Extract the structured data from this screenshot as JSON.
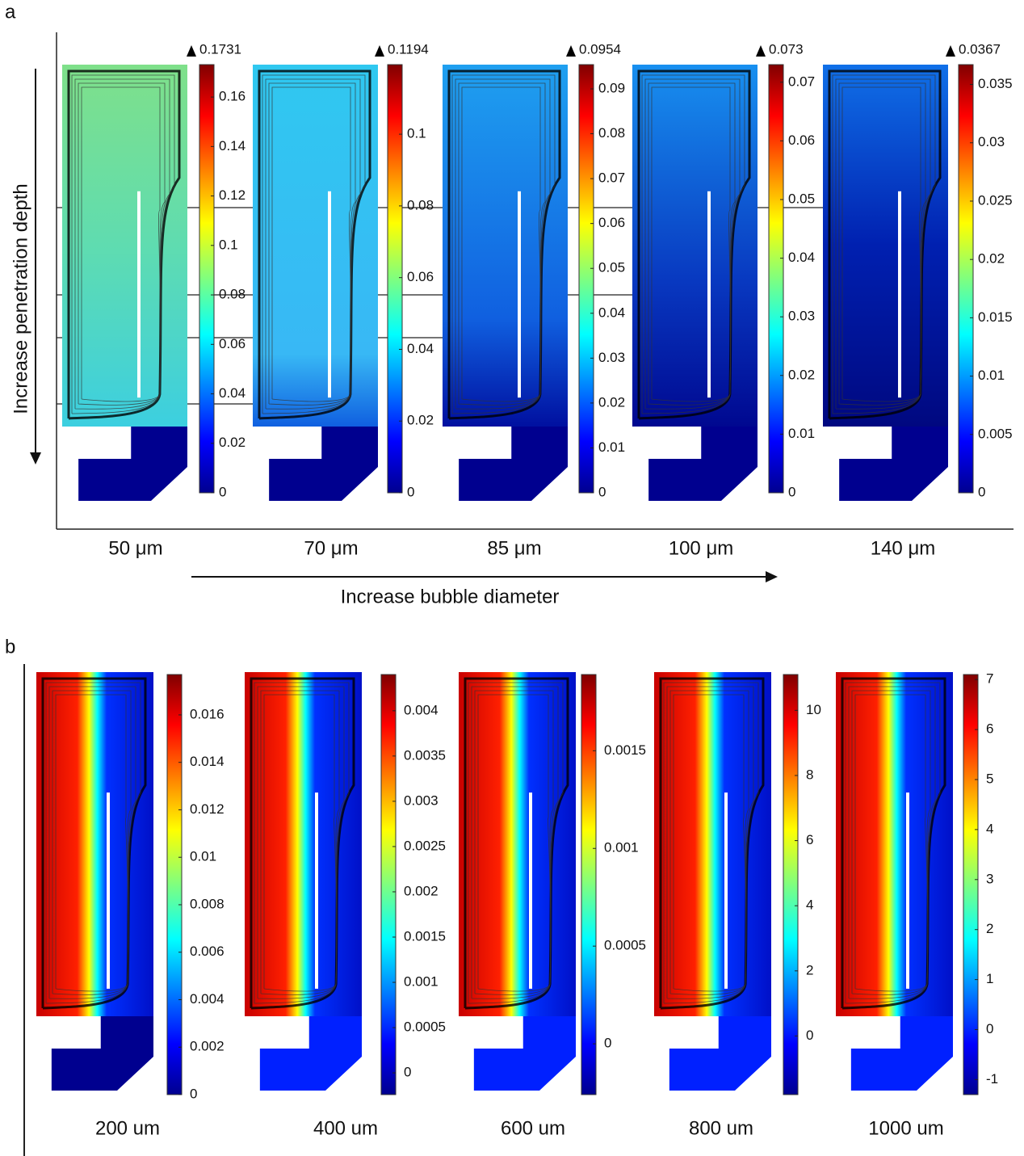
{
  "panel_a": {
    "label": "a",
    "y_axis_label": "Increase penetration depth",
    "x_axis_label": "Increase bubble diameter",
    "panels": [
      {
        "caption": "50 μm",
        "min": 0,
        "max": 0.1731,
        "ticks": [
          0,
          0.02,
          0.04,
          0.06,
          0.08,
          0.1,
          0.12,
          0.14,
          0.16
        ]
      },
      {
        "caption": "70 μm",
        "min": 0,
        "max": 0.1194,
        "ticks": [
          0,
          0.02,
          0.04,
          0.06,
          0.08,
          0.1
        ]
      },
      {
        "caption": "85 μm",
        "min": 0,
        "max": 0.0954,
        "ticks": [
          0,
          0.01,
          0.02,
          0.03,
          0.04,
          0.05,
          0.06,
          0.07,
          0.08,
          0.09
        ]
      },
      {
        "caption": "100 μm",
        "min": 0,
        "max": 0.073,
        "ticks": [
          0,
          0.01,
          0.02,
          0.03,
          0.04,
          0.05,
          0.06,
          0.07
        ]
      },
      {
        "caption": "140 μm",
        "min": 0,
        "max": 0.0367,
        "ticks": [
          0,
          0.005,
          0.01,
          0.015,
          0.02,
          0.025,
          0.03,
          0.035
        ]
      }
    ]
  },
  "panel_b": {
    "label": "b",
    "panels": [
      {
        "caption": "200 um",
        "range": [
          0,
          0.0177
        ],
        "ticks": [
          0,
          0.002,
          0.004,
          0.006,
          0.008,
          0.01,
          0.012,
          0.014,
          0.016
        ]
      },
      {
        "caption": "400 um",
        "range": [
          -0.00024,
          0.0044
        ],
        "ticks": [
          0,
          0.0005,
          0.001,
          0.0015,
          0.002,
          0.0025,
          0.003,
          0.0035,
          0.004
        ]
      },
      {
        "caption": "600 um",
        "range": [
          -0.00026,
          0.00189
        ],
        "ticks": [
          0,
          0.0005,
          0.001,
          0.0015
        ]
      },
      {
        "caption": "800 um",
        "range": [
          -1.8,
          11.1
        ],
        "ticks": [
          0,
          2,
          4,
          6,
          8,
          10
        ]
      },
      {
        "caption": "1000 um",
        "range": [
          -1.3,
          7.1
        ],
        "ticks": [
          -1,
          0,
          1,
          2,
          3,
          4,
          5,
          6,
          7
        ]
      }
    ]
  }
}
